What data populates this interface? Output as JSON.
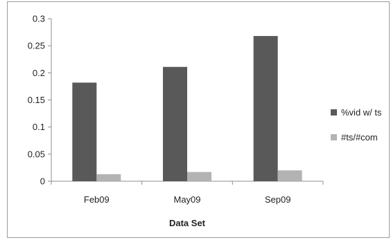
{
  "chart_data": {
    "type": "bar",
    "title": "",
    "xlabel": "Data Set",
    "ylabel": "",
    "categories": [
      "Feb09",
      "May09",
      "Sep09"
    ],
    "series": [
      {
        "name": "%vid w/ ts",
        "values": [
          0.182,
          0.211,
          0.268
        ],
        "color": "#595959"
      },
      {
        "name": "#ts/#com",
        "values": [
          0.013,
          0.017,
          0.02
        ],
        "color": "#b3b3b3"
      }
    ],
    "ylim": [
      0,
      0.3
    ],
    "yticks": [
      0,
      0.05,
      0.1,
      0.15,
      0.2,
      0.25,
      0.3
    ],
    "ytick_labels": [
      "0",
      "0.05",
      "0.1",
      "0.15",
      "0.2",
      "0.25",
      "0.3"
    ],
    "grid": false,
    "legend_position": "right"
  }
}
